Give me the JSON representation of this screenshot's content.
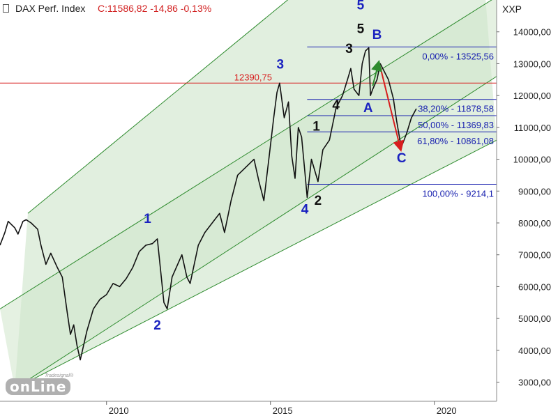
{
  "header": {
    "name": "DAX Perf. Index",
    "quote": "C:11586,82 -14,86 -0,13%",
    "symbol": "XXP"
  },
  "logo": {
    "tagline": "Tradesignal®",
    "word": "onLine"
  },
  "colors": {
    "background": "#ffffff",
    "price": "#111111",
    "channel_line": "#2e8b2e",
    "channel_fill": "#dcecd9",
    "fib_line": "#1a22b0",
    "fib_text": "#1a22b0",
    "resistance": "#d81e1e",
    "wave_blue": "#1a22c0",
    "wave_black": "#111111",
    "arrow_up": "#2e8b2e",
    "arrow_down": "#d81e1e",
    "axis_text": "#222222"
  },
  "chart_data": {
    "type": "line",
    "yaxis": {
      "position": "right",
      "scale": "linear",
      "ylim": [
        2400,
        15000
      ],
      "ticks": [
        3000,
        4000,
        5000,
        6000,
        7000,
        8000,
        9000,
        10000,
        11000,
        12000,
        13000,
        14000
      ],
      "tick_labels": [
        "3000,00",
        "4000,00",
        "5000,00",
        "6000,00",
        "7000,00",
        "8000,00",
        "9000,00",
        "10000,00",
        "11000,00",
        "12000,00",
        "13000,00",
        "14000,00"
      ]
    },
    "xaxis": {
      "xlim": [
        2006.75,
        2021.9
      ],
      "ticks": [
        2010,
        2015,
        2020
      ],
      "tick_labels": [
        "2010",
        "2015",
        "2020"
      ]
    },
    "grid": false,
    "series": [
      {
        "points": [
          [
            2006.75,
            7300
          ],
          [
            2006.9,
            7700
          ],
          [
            2007.0,
            8050
          ],
          [
            2007.2,
            7850
          ],
          [
            2007.3,
            7650
          ],
          [
            2007.45,
            8050
          ],
          [
            2007.55,
            8100
          ],
          [
            2007.7,
            8000
          ],
          [
            2007.9,
            7800
          ],
          [
            2008.0,
            7300
          ],
          [
            2008.15,
            6700
          ],
          [
            2008.3,
            7050
          ],
          [
            2008.5,
            6600
          ],
          [
            2008.65,
            6300
          ],
          [
            2008.8,
            5200
          ],
          [
            2008.9,
            4500
          ],
          [
            2009.0,
            4800
          ],
          [
            2009.1,
            4150
          ],
          [
            2009.2,
            3700
          ],
          [
            2009.4,
            4600
          ],
          [
            2009.6,
            5300
          ],
          [
            2009.8,
            5600
          ],
          [
            2010.0,
            5750
          ],
          [
            2010.2,
            6100
          ],
          [
            2010.4,
            6000
          ],
          [
            2010.6,
            6250
          ],
          [
            2010.8,
            6600
          ],
          [
            2011.0,
            7100
          ],
          [
            2011.2,
            7300
          ],
          [
            2011.4,
            7350
          ],
          [
            2011.55,
            7500
          ],
          [
            2011.65,
            6500
          ],
          [
            2011.75,
            5500
          ],
          [
            2011.85,
            5300
          ],
          [
            2012.0,
            6300
          ],
          [
            2012.3,
            7000
          ],
          [
            2012.45,
            6300
          ],
          [
            2012.55,
            6100
          ],
          [
            2012.8,
            7300
          ],
          [
            2013.0,
            7700
          ],
          [
            2013.3,
            8100
          ],
          [
            2013.45,
            8300
          ],
          [
            2013.6,
            7700
          ],
          [
            2013.8,
            8700
          ],
          [
            2014.0,
            9500
          ],
          [
            2014.2,
            9700
          ],
          [
            2014.5,
            10000
          ],
          [
            2014.65,
            9300
          ],
          [
            2014.8,
            8700
          ],
          [
            2014.95,
            10000
          ],
          [
            2015.1,
            11300
          ],
          [
            2015.2,
            12100
          ],
          [
            2015.28,
            12390.75
          ],
          [
            2015.42,
            11300
          ],
          [
            2015.55,
            11800
          ],
          [
            2015.65,
            10100
          ],
          [
            2015.75,
            9400
          ],
          [
            2015.85,
            11000
          ],
          [
            2015.95,
            10700
          ],
          [
            2016.05,
            9600
          ],
          [
            2016.12,
            8800
          ],
          [
            2016.25,
            10000
          ],
          [
            2016.45,
            9300
          ],
          [
            2016.6,
            10300
          ],
          [
            2016.8,
            10600
          ],
          [
            2017.0,
            11600
          ],
          [
            2017.2,
            12000
          ],
          [
            2017.35,
            12500
          ],
          [
            2017.45,
            12850
          ],
          [
            2017.55,
            12200
          ],
          [
            2017.7,
            12000
          ],
          [
            2017.8,
            13000
          ],
          [
            2017.9,
            13400
          ],
          [
            2018.0,
            13500
          ],
          [
            2018.05,
            12000
          ],
          [
            2018.12,
            12200
          ],
          [
            2018.25,
            12500
          ],
          [
            2018.35,
            13000
          ],
          [
            2018.5,
            12700
          ],
          [
            2018.6,
            12500
          ],
          [
            2018.75,
            11900
          ],
          [
            2018.85,
            11200
          ],
          [
            2018.95,
            10600
          ],
          [
            2019.0,
            10400
          ],
          [
            2019.15,
            10800
          ],
          [
            2019.3,
            11300
          ],
          [
            2019.45,
            11586.82
          ]
        ]
      }
    ],
    "channel": [
      {
        "role": "upper",
        "from": [
          2007.6,
          8300
        ],
        "to": [
          2021.2,
          19800
        ]
      },
      {
        "role": "mid",
        "from": [
          2006.75,
          5300
        ],
        "to": [
          2021.9,
          15100
        ]
      },
      {
        "role": "lower-upper",
        "from": [
          2007.2,
          2800
        ],
        "to": [
          2021.9,
          12600
        ]
      },
      {
        "role": "lower",
        "from": [
          2007.2,
          2800
        ],
        "to": [
          2021.9,
          10600
        ]
      }
    ],
    "resistance": {
      "value": 12390.75,
      "label": "12390,75"
    },
    "fibonacci": [
      {
        "label": "0,00% - 13525,56",
        "value": 13525.56
      },
      {
        "label": "38,20% - 11878,58",
        "value": 11878.58
      },
      {
        "label": "50,00% - 11369,83",
        "value": 11369.83
      },
      {
        "label": "61,80% - 10861,08",
        "value": 10861.08
      },
      {
        "label": "100,00% - 9214,1",
        "value": 9214.1
      }
    ],
    "annotations": [
      {
        "text": "1",
        "color": "blue",
        "at": [
          2011.25,
          8000
        ]
      },
      {
        "text": "2",
        "color": "blue",
        "at": [
          2011.55,
          4650
        ]
      },
      {
        "text": "3",
        "color": "blue",
        "at": [
          2015.3,
          12850
        ]
      },
      {
        "text": "4",
        "color": "blue",
        "at": [
          2016.05,
          8300
        ]
      },
      {
        "text": "5",
        "color": "blue",
        "at": [
          2017.75,
          14700
        ]
      },
      {
        "text": "1",
        "color": "black",
        "at": [
          2016.4,
          10900
        ]
      },
      {
        "text": "2",
        "color": "black",
        "at": [
          2016.45,
          8570
        ]
      },
      {
        "text": "3",
        "color": "black",
        "at": [
          2017.4,
          13340
        ]
      },
      {
        "text": "4",
        "color": "black",
        "at": [
          2017.0,
          11570
        ]
      },
      {
        "text": "5",
        "color": "black",
        "at": [
          2017.75,
          13960
        ]
      },
      {
        "text": "A",
        "color": "blue",
        "at": [
          2017.98,
          11480
        ]
      },
      {
        "text": "B",
        "color": "blue",
        "at": [
          2018.25,
          13770
        ]
      },
      {
        "text": "C",
        "color": "blue",
        "at": [
          2019.0,
          9900
        ]
      }
    ]
  }
}
